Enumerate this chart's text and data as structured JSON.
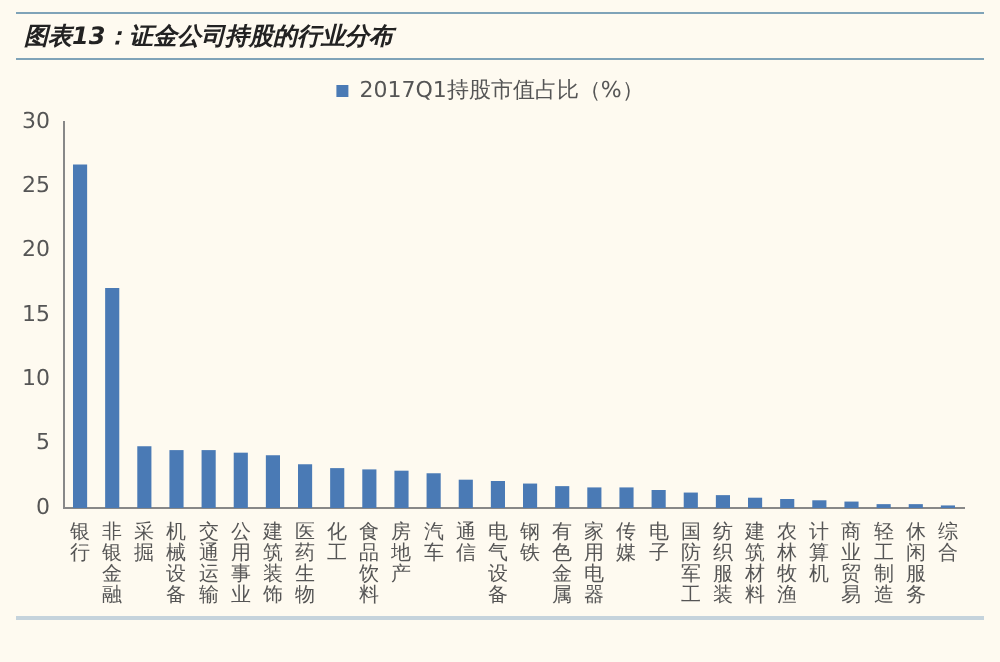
{
  "chart_data": {
    "type": "bar",
    "title": "图表13：证金公司持股的行业分布",
    "categories": [
      "银行",
      "非银金融",
      "采掘",
      "机械设备",
      "交通运输",
      "公用事业",
      "建筑装饰",
      "医药生物",
      "化工",
      "食品饮料",
      "房地产",
      "汽车",
      "通信",
      "电气设备",
      "钢铁",
      "有色金属",
      "家用电器",
      "传媒",
      "电子",
      "国防军工",
      "纺织服装",
      "建筑材料",
      "农林牧渔",
      "计算机",
      "商业贸易",
      "轻工制造",
      "休闲服务",
      "综合"
    ],
    "series": [
      {
        "name": "2017Q1持股市值占比（%）",
        "color": "#4a7ab5",
        "values": [
          26.7,
          17.1,
          4.8,
          4.5,
          4.5,
          4.3,
          4.1,
          3.4,
          3.1,
          3.0,
          2.9,
          2.7,
          2.2,
          2.1,
          1.9,
          1.7,
          1.6,
          1.6,
          1.4,
          1.2,
          1.0,
          0.8,
          0.7,
          0.6,
          0.5,
          0.3,
          0.3,
          0.2
        ]
      }
    ],
    "ylim": [
      0,
      30
    ],
    "yticks": [
      0,
      5,
      10,
      15,
      20,
      25,
      30
    ],
    "grid": false,
    "legend": "top"
  }
}
